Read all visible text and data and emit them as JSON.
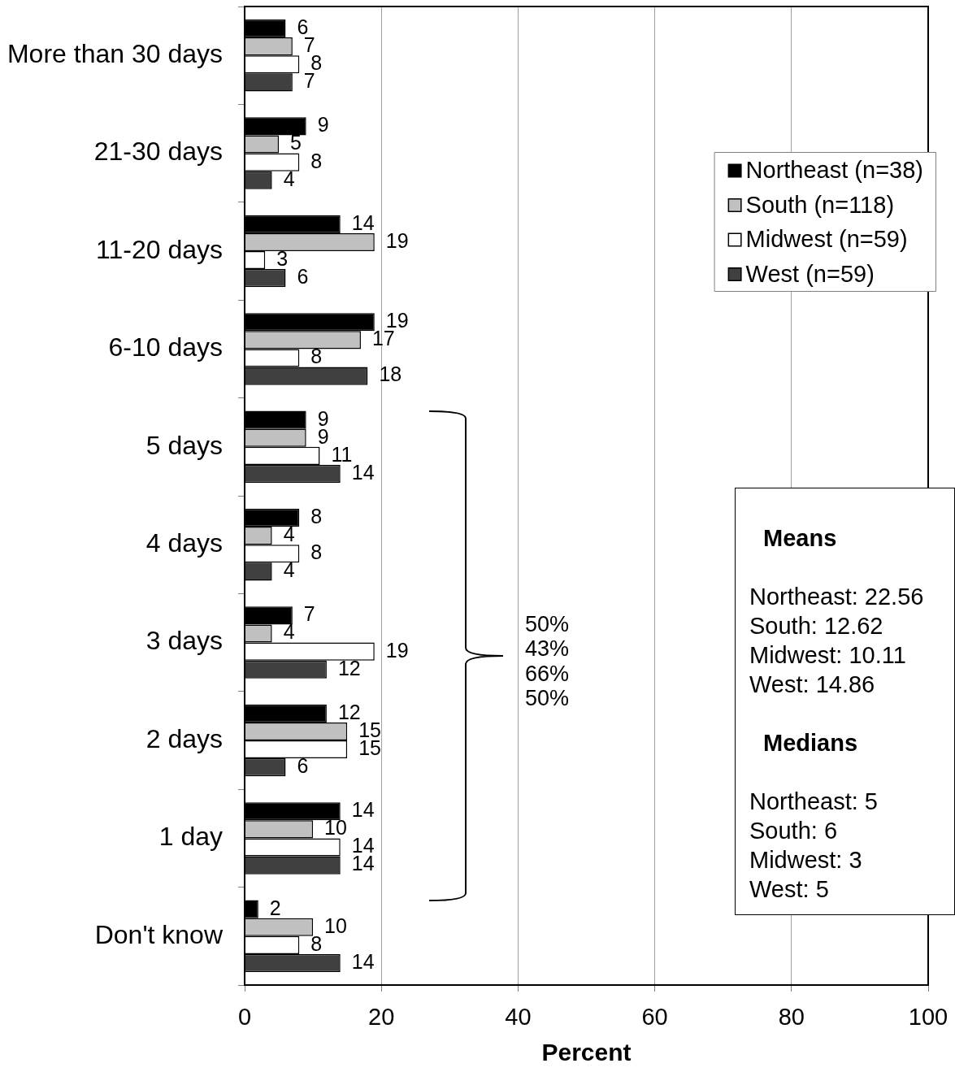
{
  "chart_data": {
    "type": "bar",
    "orientation": "horizontal",
    "xlabel": "Percent",
    "categories": [
      "More than 30 days",
      "21-30 days",
      "11-20 days",
      "6-10 days",
      "5 days",
      "4 days",
      "3 days",
      "2 days",
      "1 day",
      "Don't know"
    ],
    "series": [
      {
        "name": "Northeast (n=38)",
        "color": "#000000",
        "values": [
          6,
          9,
          14,
          19,
          9,
          8,
          7,
          12,
          14,
          2
        ]
      },
      {
        "name": "South (n=118)",
        "color": "#c0c0c0",
        "values": [
          7,
          5,
          19,
          17,
          9,
          4,
          4,
          15,
          10,
          10
        ]
      },
      {
        "name": "Midwest (n=59)",
        "color": "#ffffff",
        "values": [
          8,
          8,
          3,
          8,
          11,
          8,
          19,
          15,
          14,
          8
        ]
      },
      {
        "name": "West (n=59)",
        "color": "#404040",
        "values": [
          7,
          4,
          6,
          18,
          14,
          4,
          12,
          6,
          14,
          14
        ]
      }
    ],
    "xlim": [
      0,
      100
    ],
    "xticks": [
      0,
      20,
      40,
      60,
      80,
      100
    ],
    "grid": "x",
    "legend": "top right",
    "data_labels": true,
    "annotations": [
      "50%\n43%\n66%\n50%",
      "Means",
      "Northeast: 22.56\nSouth: 12.62\nMidwest: 10.11\nWest: 14.86",
      "Medians",
      "Northeast: 5\nSouth: 6\nMidwest: 3\nWest: 5"
    ]
  }
}
